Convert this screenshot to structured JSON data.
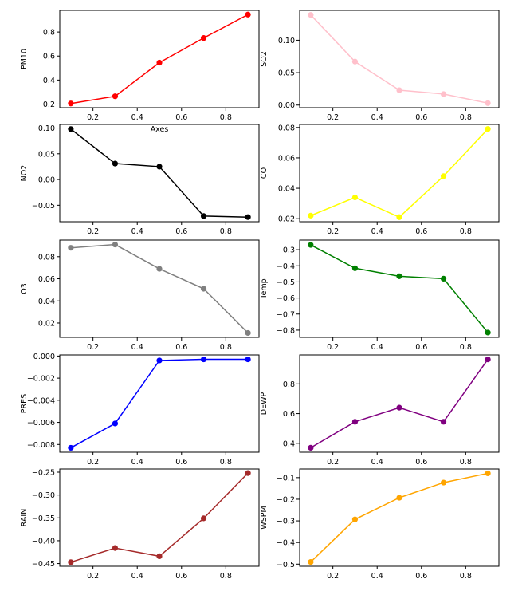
{
  "chart_data": [
    {
      "type": "line",
      "ylabel": "PM10",
      "xlabel": "Axes",
      "color": "#ff0000",
      "x": [
        0.1,
        0.3,
        0.5,
        0.7,
        0.9
      ],
      "values": [
        0.205,
        0.265,
        0.545,
        0.75,
        0.945
      ],
      "xlim": [
        0.05,
        0.95
      ],
      "ylim": [
        0.17,
        0.98
      ],
      "xticks": [
        "0.2",
        "0.4",
        "0.6",
        "0.8"
      ],
      "yticks": [
        {
          "v": 0.2,
          "label": "0.2"
        },
        {
          "v": 0.4,
          "label": "0.4"
        },
        {
          "v": 0.6,
          "label": "0.6"
        },
        {
          "v": 0.8,
          "label": "0.8"
        }
      ]
    },
    {
      "type": "line",
      "ylabel": "SO2",
      "xlabel": "",
      "color": "#ffc0cb",
      "x": [
        0.1,
        0.3,
        0.5,
        0.7,
        0.9
      ],
      "values": [
        0.139,
        0.067,
        0.023,
        0.017,
        0.003
      ],
      "xlim": [
        0.05,
        0.95
      ],
      "ylim": [
        -0.004,
        0.146
      ],
      "xticks": [
        "0.2",
        "0.4",
        "0.6",
        "0.8"
      ],
      "yticks": [
        {
          "v": 0.0,
          "label": "0.00"
        },
        {
          "v": 0.05,
          "label": "0.05"
        },
        {
          "v": 0.1,
          "label": "0.10"
        }
      ]
    },
    {
      "type": "line",
      "ylabel": "NO2",
      "xlabel": "",
      "color": "#000000",
      "x": [
        0.1,
        0.3,
        0.5,
        0.7,
        0.9
      ],
      "values": [
        0.098,
        0.031,
        0.025,
        -0.071,
        -0.073
      ],
      "xlim": [
        0.05,
        0.95
      ],
      "ylim": [
        -0.082,
        0.107
      ],
      "xticks": [
        "0.2",
        "0.4",
        "0.6",
        "0.8"
      ],
      "yticks": [
        {
          "v": -0.05,
          "label": "−0.05"
        },
        {
          "v": 0.0,
          "label": "0.00"
        },
        {
          "v": 0.05,
          "label": "0.05"
        },
        {
          "v": 0.1,
          "label": "0.10"
        }
      ]
    },
    {
      "type": "line",
      "ylabel": "CO",
      "xlabel": "",
      "color": "#ffff00",
      "x": [
        0.1,
        0.3,
        0.5,
        0.7,
        0.9
      ],
      "values": [
        0.022,
        0.034,
        0.021,
        0.048,
        0.079
      ],
      "xlim": [
        0.05,
        0.95
      ],
      "ylim": [
        0.018,
        0.082
      ],
      "xticks": [
        "0.2",
        "0.4",
        "0.6",
        "0.8"
      ],
      "yticks": [
        {
          "v": 0.02,
          "label": "0.02"
        },
        {
          "v": 0.04,
          "label": "0.04"
        },
        {
          "v": 0.06,
          "label": "0.06"
        },
        {
          "v": 0.08,
          "label": "0.08"
        }
      ]
    },
    {
      "type": "line",
      "ylabel": "O3",
      "xlabel": "",
      "color": "#808080",
      "x": [
        0.1,
        0.3,
        0.5,
        0.7,
        0.9
      ],
      "values": [
        0.088,
        0.091,
        0.069,
        0.051,
        0.011
      ],
      "xlim": [
        0.05,
        0.95
      ],
      "ylim": [
        0.007,
        0.095
      ],
      "xticks": [
        "0.2",
        "0.4",
        "0.6",
        "0.8"
      ],
      "yticks": [
        {
          "v": 0.02,
          "label": "0.02"
        },
        {
          "v": 0.04,
          "label": "0.04"
        },
        {
          "v": 0.06,
          "label": "0.06"
        },
        {
          "v": 0.08,
          "label": "0.08"
        }
      ]
    },
    {
      "type": "line",
      "ylabel": "Temp",
      "xlabel": "",
      "color": "#008000",
      "x": [
        0.1,
        0.3,
        0.5,
        0.7,
        0.9
      ],
      "values": [
        -0.27,
        -0.415,
        -0.465,
        -0.48,
        -0.815
      ],
      "xlim": [
        0.05,
        0.95
      ],
      "ylim": [
        -0.845,
        -0.24
      ],
      "xticks": [
        "0.2",
        "0.4",
        "0.6",
        "0.8"
      ],
      "yticks": [
        {
          "v": -0.3,
          "label": "−0.3"
        },
        {
          "v": -0.4,
          "label": "−0.4"
        },
        {
          "v": -0.5,
          "label": "−0.5"
        },
        {
          "v": -0.6,
          "label": "−0.6"
        },
        {
          "v": -0.7,
          "label": "−0.7"
        },
        {
          "v": -0.8,
          "label": "−0.8"
        }
      ]
    },
    {
      "type": "line",
      "ylabel": "PRES",
      "xlabel": "",
      "color": "#0000ff",
      "x": [
        0.1,
        0.3,
        0.5,
        0.7,
        0.9
      ],
      "values": [
        -0.0083,
        -0.0061,
        -0.0004,
        -0.0003,
        -0.0003
      ],
      "xlim": [
        0.05,
        0.95
      ],
      "ylim": [
        -0.0087,
        0.0001
      ],
      "xticks": [
        "0.2",
        "0.4",
        "0.6",
        "0.8"
      ],
      "yticks": [
        {
          "v": -0.008,
          "label": "−0.008"
        },
        {
          "v": -0.006,
          "label": "−0.006"
        },
        {
          "v": -0.004,
          "label": "−0.004"
        },
        {
          "v": -0.002,
          "label": "−0.002"
        },
        {
          "v": 0.0,
          "label": "0.000"
        }
      ]
    },
    {
      "type": "line",
      "ylabel": "DEWP",
      "xlabel": "",
      "color": "#800080",
      "x": [
        0.1,
        0.3,
        0.5,
        0.7,
        0.9
      ],
      "values": [
        0.37,
        0.545,
        0.64,
        0.545,
        0.965
      ],
      "xlim": [
        0.05,
        0.95
      ],
      "ylim": [
        0.34,
        0.995
      ],
      "xticks": [
        "0.2",
        "0.4",
        "0.6",
        "0.8"
      ],
      "yticks": [
        {
          "v": 0.4,
          "label": "0.4"
        },
        {
          "v": 0.6,
          "label": "0.6"
        },
        {
          "v": 0.8,
          "label": "0.8"
        }
      ]
    },
    {
      "type": "line",
      "ylabel": "RAIN",
      "xlabel": "",
      "color": "#a52a2a",
      "x": [
        0.1,
        0.3,
        0.5,
        0.7,
        0.9
      ],
      "values": [
        -0.447,
        -0.416,
        -0.434,
        -0.351,
        -0.252
      ],
      "xlim": [
        0.05,
        0.95
      ],
      "ylim": [
        -0.456,
        -0.243
      ],
      "xticks": [
        "0.2",
        "0.4",
        "0.6",
        "0.8"
      ],
      "yticks": [
        {
          "v": -0.45,
          "label": "−0.45"
        },
        {
          "v": -0.4,
          "label": "−0.40"
        },
        {
          "v": -0.35,
          "label": "−0.35"
        },
        {
          "v": -0.3,
          "label": "−0.30"
        },
        {
          "v": -0.25,
          "label": "−0.25"
        }
      ]
    },
    {
      "type": "line",
      "ylabel": "WSPM",
      "xlabel": "",
      "color": "#ffa500",
      "x": [
        0.1,
        0.3,
        0.5,
        0.7,
        0.9
      ],
      "values": [
        -0.49,
        -0.293,
        -0.193,
        -0.123,
        -0.08
      ],
      "xlim": [
        0.05,
        0.95
      ],
      "ylim": [
        -0.51,
        -0.06
      ],
      "xticks": [
        "0.2",
        "0.4",
        "0.6",
        "0.8"
      ],
      "yticks": [
        {
          "v": -0.5,
          "label": "−0.5"
        },
        {
          "v": -0.4,
          "label": "−0.4"
        },
        {
          "v": -0.3,
          "label": "−0.3"
        },
        {
          "v": -0.2,
          "label": "−0.2"
        },
        {
          "v": -0.1,
          "label": "−0.1"
        }
      ]
    }
  ]
}
